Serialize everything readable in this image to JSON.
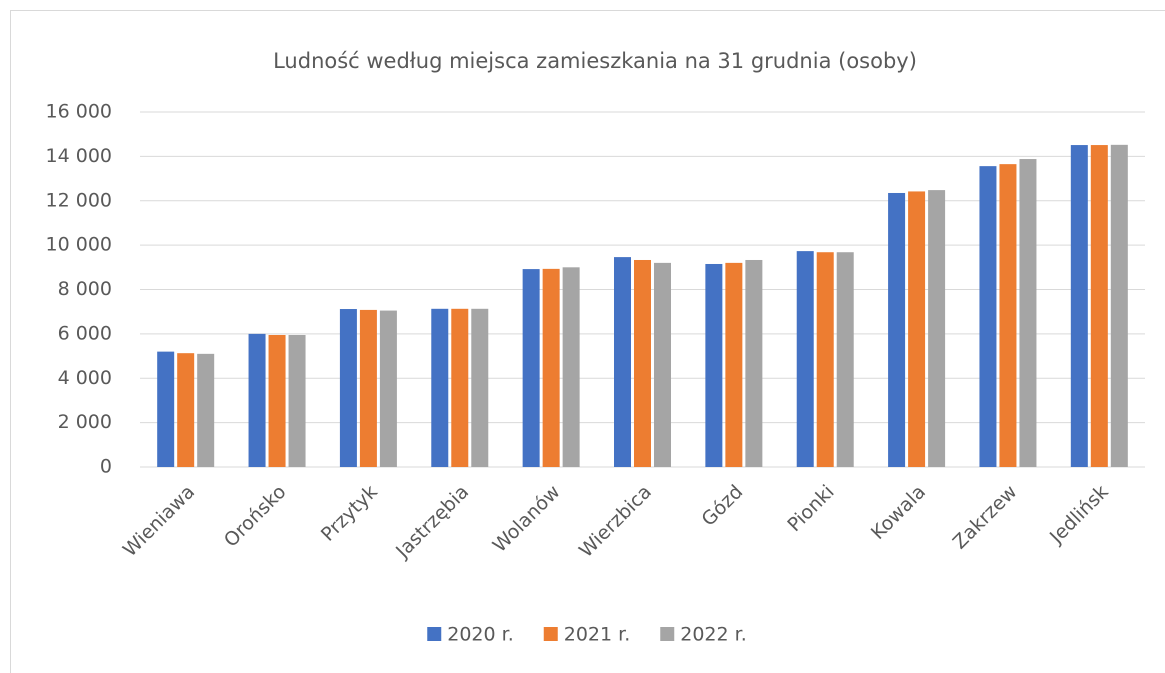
{
  "chart_data": {
    "type": "bar",
    "title": "Ludność według miejsca zamieszkania na 31 grudnia (osoby)",
    "categories": [
      "Wieniawa",
      "Orońsko",
      "Przytyk",
      "Jastrzębia",
      "Wolanów",
      "Wierzbica",
      "Gózd",
      "Pionki",
      "Kowala",
      "Zakrzew",
      "Jedlińsk"
    ],
    "series": [
      {
        "name": "2020 r.",
        "color": "#4472c4",
        "values": [
          5200,
          6000,
          7120,
          7130,
          8920,
          9460,
          9150,
          9730,
          12350,
          13560,
          14510
        ]
      },
      {
        "name": "2021 r.",
        "color": "#ed7d31",
        "values": [
          5130,
          5950,
          7080,
          7130,
          8930,
          9330,
          9200,
          9680,
          12420,
          13650,
          14510
        ]
      },
      {
        "name": "2022 r.",
        "color": "#a5a5a5",
        "values": [
          5100,
          5950,
          7050,
          7130,
          9000,
          9200,
          9330,
          9680,
          12480,
          13880,
          14520
        ]
      }
    ],
    "ylim": [
      0,
      16000
    ],
    "yticks": [
      0,
      {
        "value": 2000,
        "label": "2 000"
      },
      {
        "value": 4000,
        "label": "4 000"
      },
      {
        "value": 6000,
        "label": "6 000"
      },
      {
        "value": 8000,
        "label": "8 000"
      },
      {
        "value": 10000,
        "label": "10 000"
      },
      {
        "value": 12000,
        "label": "12 000"
      },
      {
        "value": 14000,
        "label": "14 000"
      },
      {
        "value": 16000,
        "label": "16 000"
      }
    ],
    "grid": true,
    "legend": "bottom"
  }
}
